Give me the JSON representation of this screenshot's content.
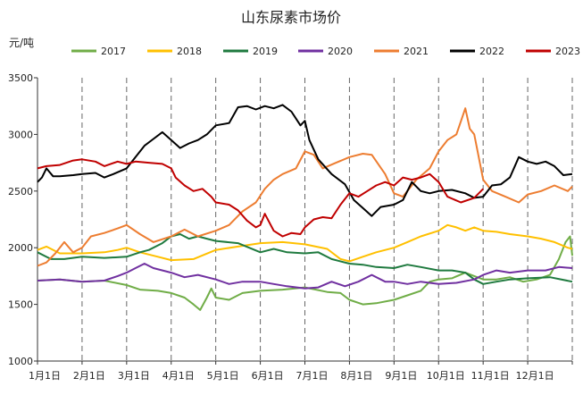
{
  "chart_data": {
    "type": "line",
    "title": "山东尿素市场价",
    "ylabel": "元/吨",
    "xlabel": "",
    "ylim": [
      1000,
      3500
    ],
    "y_ticks": [
      1000,
      1500,
      2000,
      2500,
      3000,
      3500
    ],
    "x_range_months": [
      1,
      13
    ],
    "x_tick_labels": [
      "1月1日",
      "2月1日",
      "3月1日",
      "4月1日",
      "5月1日",
      "6月1日",
      "7月1日",
      "8月1日",
      "9月1日",
      "10月1日",
      "11月1日",
      "12月1日"
    ],
    "grid": "vertical-dashed",
    "legend_position": "top",
    "series": [
      {
        "name": "2017",
        "color": "#70ad47",
        "points": [
          [
            1.0,
            1710
          ],
          [
            1.5,
            1720
          ],
          [
            2.0,
            1700
          ],
          [
            2.5,
            1710
          ],
          [
            3.0,
            1670
          ],
          [
            3.3,
            1630
          ],
          [
            3.7,
            1620
          ],
          [
            4.0,
            1600
          ],
          [
            4.3,
            1560
          ],
          [
            4.5,
            1500
          ],
          [
            4.65,
            1450
          ],
          [
            4.8,
            1560
          ],
          [
            4.9,
            1640
          ],
          [
            5.0,
            1560
          ],
          [
            5.3,
            1540
          ],
          [
            5.6,
            1600
          ],
          [
            6.0,
            1620
          ],
          [
            6.5,
            1630
          ],
          [
            7.0,
            1650
          ],
          [
            7.5,
            1610
          ],
          [
            7.8,
            1600
          ],
          [
            8.0,
            1540
          ],
          [
            8.3,
            1500
          ],
          [
            8.6,
            1510
          ],
          [
            9.0,
            1540
          ],
          [
            9.3,
            1580
          ],
          [
            9.6,
            1620
          ],
          [
            9.8,
            1700
          ],
          [
            10.0,
            1720
          ],
          [
            10.3,
            1730
          ],
          [
            10.6,
            1780
          ],
          [
            10.8,
            1750
          ],
          [
            11.0,
            1720
          ],
          [
            11.3,
            1720
          ],
          [
            11.6,
            1740
          ],
          [
            11.9,
            1700
          ],
          [
            12.2,
            1720
          ],
          [
            12.5,
            1760
          ],
          [
            12.7,
            1900
          ],
          [
            12.85,
            2050
          ],
          [
            12.95,
            2100
          ],
          [
            13.0,
            1930
          ]
        ]
      },
      {
        "name": "2018",
        "color": "#ffc000",
        "points": [
          [
            1.0,
            1980
          ],
          [
            1.2,
            2010
          ],
          [
            1.5,
            1950
          ],
          [
            2.0,
            1950
          ],
          [
            2.5,
            1960
          ],
          [
            2.8,
            1980
          ],
          [
            3.0,
            2000
          ],
          [
            3.3,
            1960
          ],
          [
            3.7,
            1920
          ],
          [
            4.0,
            1890
          ],
          [
            4.5,
            1900
          ],
          [
            5.0,
            1980
          ],
          [
            5.5,
            2010
          ],
          [
            6.0,
            2040
          ],
          [
            6.5,
            2050
          ],
          [
            7.0,
            2030
          ],
          [
            7.5,
            1990
          ],
          [
            7.8,
            1900
          ],
          [
            8.0,
            1880
          ],
          [
            8.3,
            1920
          ],
          [
            8.6,
            1960
          ],
          [
            9.0,
            2000
          ],
          [
            9.3,
            2050
          ],
          [
            9.6,
            2100
          ],
          [
            10.0,
            2150
          ],
          [
            10.2,
            2200
          ],
          [
            10.4,
            2180
          ],
          [
            10.6,
            2150
          ],
          [
            10.8,
            2180
          ],
          [
            11.0,
            2150
          ],
          [
            11.3,
            2140
          ],
          [
            11.6,
            2120
          ],
          [
            12.0,
            2100
          ],
          [
            12.3,
            2080
          ],
          [
            12.6,
            2050
          ],
          [
            12.9,
            2000
          ],
          [
            13.0,
            1990
          ]
        ]
      },
      {
        "name": "2019",
        "color": "#1f7a3f",
        "points": [
          [
            1.0,
            1960
          ],
          [
            1.3,
            1900
          ],
          [
            1.6,
            1900
          ],
          [
            2.0,
            1920
          ],
          [
            2.5,
            1910
          ],
          [
            3.0,
            1920
          ],
          [
            3.3,
            1960
          ],
          [
            3.5,
            1980
          ],
          [
            3.8,
            2040
          ],
          [
            4.0,
            2100
          ],
          [
            4.2,
            2120
          ],
          [
            4.4,
            2080
          ],
          [
            4.6,
            2100
          ],
          [
            4.8,
            2080
          ],
          [
            5.0,
            2060
          ],
          [
            5.5,
            2040
          ],
          [
            6.0,
            1960
          ],
          [
            6.3,
            1990
          ],
          [
            6.6,
            1960
          ],
          [
            7.0,
            1950
          ],
          [
            7.3,
            1960
          ],
          [
            7.6,
            1900
          ],
          [
            8.0,
            1860
          ],
          [
            8.3,
            1850
          ],
          [
            8.6,
            1830
          ],
          [
            9.0,
            1820
          ],
          [
            9.3,
            1850
          ],
          [
            9.6,
            1830
          ],
          [
            10.0,
            1800
          ],
          [
            10.3,
            1800
          ],
          [
            10.6,
            1780
          ],
          [
            10.8,
            1720
          ],
          [
            11.0,
            1680
          ],
          [
            11.3,
            1700
          ],
          [
            11.6,
            1720
          ],
          [
            12.0,
            1730
          ],
          [
            12.5,
            1740
          ],
          [
            13.0,
            1700
          ]
        ]
      },
      {
        "name": "2020",
        "color": "#7030a0",
        "points": [
          [
            1.0,
            1710
          ],
          [
            1.5,
            1720
          ],
          [
            2.0,
            1700
          ],
          [
            2.5,
            1710
          ],
          [
            2.8,
            1750
          ],
          [
            3.0,
            1780
          ],
          [
            3.2,
            1820
          ],
          [
            3.4,
            1860
          ],
          [
            3.6,
            1820
          ],
          [
            4.0,
            1780
          ],
          [
            4.3,
            1740
          ],
          [
            4.6,
            1760
          ],
          [
            5.0,
            1720
          ],
          [
            5.3,
            1680
          ],
          [
            5.6,
            1700
          ],
          [
            6.0,
            1700
          ],
          [
            6.3,
            1680
          ],
          [
            6.6,
            1660
          ],
          [
            7.0,
            1640
          ],
          [
            7.3,
            1650
          ],
          [
            7.6,
            1700
          ],
          [
            7.9,
            1660
          ],
          [
            8.2,
            1700
          ],
          [
            8.5,
            1760
          ],
          [
            8.8,
            1700
          ],
          [
            9.0,
            1700
          ],
          [
            9.3,
            1680
          ],
          [
            9.6,
            1700
          ],
          [
            10.0,
            1680
          ],
          [
            10.4,
            1690
          ],
          [
            10.8,
            1720
          ],
          [
            11.0,
            1760
          ],
          [
            11.3,
            1800
          ],
          [
            11.6,
            1780
          ],
          [
            12.0,
            1800
          ],
          [
            12.4,
            1800
          ],
          [
            12.7,
            1830
          ],
          [
            13.0,
            1820
          ]
        ]
      },
      {
        "name": "2021",
        "color": "#ed7d31",
        "points": [
          [
            1.0,
            1840
          ],
          [
            1.2,
            1870
          ],
          [
            1.4,
            1950
          ],
          [
            1.6,
            2050
          ],
          [
            1.8,
            1960
          ],
          [
            2.0,
            2000
          ],
          [
            2.2,
            2100
          ],
          [
            2.5,
            2130
          ],
          [
            2.8,
            2170
          ],
          [
            3.0,
            2200
          ],
          [
            3.3,
            2120
          ],
          [
            3.6,
            2050
          ],
          [
            4.0,
            2100
          ],
          [
            4.3,
            2160
          ],
          [
            4.6,
            2100
          ],
          [
            5.0,
            2150
          ],
          [
            5.3,
            2200
          ],
          [
            5.6,
            2320
          ],
          [
            5.9,
            2400
          ],
          [
            6.1,
            2520
          ],
          [
            6.3,
            2600
          ],
          [
            6.5,
            2650
          ],
          [
            6.8,
            2700
          ],
          [
            7.0,
            2850
          ],
          [
            7.2,
            2820
          ],
          [
            7.4,
            2700
          ],
          [
            7.7,
            2750
          ],
          [
            8.0,
            2800
          ],
          [
            8.3,
            2830
          ],
          [
            8.5,
            2820
          ],
          [
            8.8,
            2650
          ],
          [
            9.0,
            2480
          ],
          [
            9.2,
            2450
          ],
          [
            9.5,
            2600
          ],
          [
            9.8,
            2700
          ],
          [
            10.0,
            2850
          ],
          [
            10.2,
            2950
          ],
          [
            10.4,
            3000
          ],
          [
            10.6,
            3230
          ],
          [
            10.7,
            3050
          ],
          [
            10.8,
            3000
          ],
          [
            11.0,
            2600
          ],
          [
            11.2,
            2500
          ],
          [
            11.5,
            2450
          ],
          [
            11.8,
            2400
          ],
          [
            12.0,
            2470
          ],
          [
            12.3,
            2500
          ],
          [
            12.6,
            2550
          ],
          [
            12.9,
            2500
          ],
          [
            13.0,
            2540
          ]
        ]
      },
      {
        "name": "2022",
        "color": "#000000",
        "points": [
          [
            1.0,
            2580
          ],
          [
            1.1,
            2620
          ],
          [
            1.2,
            2700
          ],
          [
            1.35,
            2630
          ],
          [
            1.5,
            2630
          ],
          [
            1.8,
            2640
          ],
          [
            2.0,
            2650
          ],
          [
            2.3,
            2660
          ],
          [
            2.5,
            2620
          ],
          [
            2.7,
            2650
          ],
          [
            3.0,
            2700
          ],
          [
            3.2,
            2800
          ],
          [
            3.4,
            2900
          ],
          [
            3.6,
            2960
          ],
          [
            3.8,
            3020
          ],
          [
            4.0,
            2950
          ],
          [
            4.2,
            2880
          ],
          [
            4.4,
            2920
          ],
          [
            4.6,
            2950
          ],
          [
            4.8,
            3000
          ],
          [
            5.0,
            3080
          ],
          [
            5.3,
            3100
          ],
          [
            5.5,
            3240
          ],
          [
            5.7,
            3250
          ],
          [
            5.9,
            3220
          ],
          [
            6.1,
            3250
          ],
          [
            6.3,
            3230
          ],
          [
            6.5,
            3260
          ],
          [
            6.7,
            3200
          ],
          [
            6.9,
            3080
          ],
          [
            7.0,
            3120
          ],
          [
            7.1,
            2950
          ],
          [
            7.3,
            2780
          ],
          [
            7.6,
            2650
          ],
          [
            7.9,
            2560
          ],
          [
            8.1,
            2420
          ],
          [
            8.3,
            2350
          ],
          [
            8.5,
            2280
          ],
          [
            8.7,
            2360
          ],
          [
            9.0,
            2380
          ],
          [
            9.2,
            2420
          ],
          [
            9.4,
            2580
          ],
          [
            9.6,
            2500
          ],
          [
            9.8,
            2480
          ],
          [
            10.0,
            2500
          ],
          [
            10.3,
            2510
          ],
          [
            10.6,
            2480
          ],
          [
            10.8,
            2440
          ],
          [
            11.0,
            2450
          ],
          [
            11.2,
            2550
          ],
          [
            11.4,
            2560
          ],
          [
            11.6,
            2620
          ],
          [
            11.8,
            2800
          ],
          [
            12.0,
            2760
          ],
          [
            12.2,
            2740
          ],
          [
            12.4,
            2760
          ],
          [
            12.6,
            2720
          ],
          [
            12.8,
            2640
          ],
          [
            13.0,
            2650
          ]
        ]
      },
      {
        "name": "2023",
        "color": "#c00000",
        "points": [
          [
            1.0,
            2700
          ],
          [
            1.2,
            2720
          ],
          [
            1.5,
            2730
          ],
          [
            1.8,
            2770
          ],
          [
            2.0,
            2780
          ],
          [
            2.3,
            2760
          ],
          [
            2.5,
            2720
          ],
          [
            2.8,
            2760
          ],
          [
            3.0,
            2740
          ],
          [
            3.2,
            2760
          ],
          [
            3.5,
            2750
          ],
          [
            3.8,
            2740
          ],
          [
            4.0,
            2700
          ],
          [
            4.1,
            2620
          ],
          [
            4.3,
            2550
          ],
          [
            4.5,
            2500
          ],
          [
            4.7,
            2520
          ],
          [
            4.9,
            2450
          ],
          [
            5.0,
            2400
          ],
          [
            5.3,
            2380
          ],
          [
            5.5,
            2330
          ],
          [
            5.7,
            2240
          ],
          [
            5.9,
            2180
          ],
          [
            6.0,
            2200
          ],
          [
            6.1,
            2300
          ],
          [
            6.3,
            2150
          ],
          [
            6.5,
            2100
          ],
          [
            6.7,
            2130
          ],
          [
            6.9,
            2120
          ],
          [
            7.0,
            2180
          ],
          [
            7.2,
            2250
          ],
          [
            7.4,
            2270
          ],
          [
            7.6,
            2260
          ],
          [
            7.8,
            2380
          ],
          [
            8.0,
            2480
          ],
          [
            8.2,
            2450
          ],
          [
            8.4,
            2500
          ],
          [
            8.6,
            2550
          ],
          [
            8.8,
            2580
          ],
          [
            9.0,
            2550
          ],
          [
            9.2,
            2620
          ],
          [
            9.4,
            2600
          ],
          [
            9.6,
            2620
          ],
          [
            9.8,
            2650
          ],
          [
            10.0,
            2580
          ],
          [
            10.2,
            2450
          ],
          [
            10.5,
            2400
          ],
          [
            10.8,
            2440
          ],
          [
            11.0,
            2520
          ]
        ]
      }
    ]
  }
}
